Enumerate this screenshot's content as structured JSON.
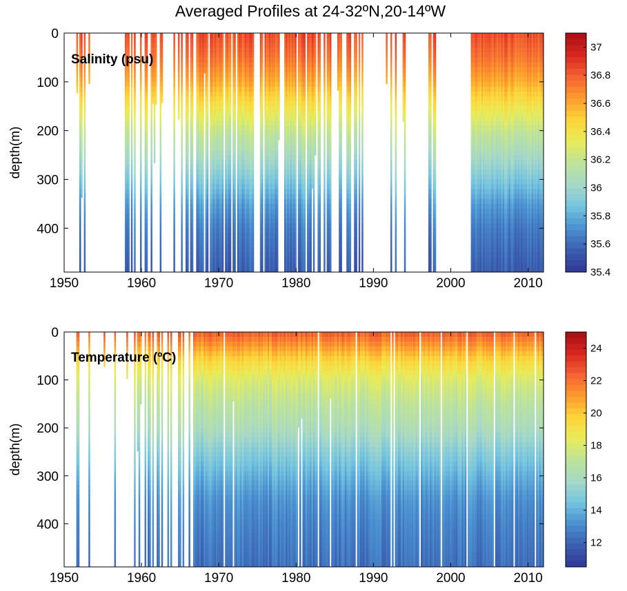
{
  "title": "Averaged Profiles at 24-32ºN,20-14ºW",
  "chart_data": [
    {
      "type": "heatmap",
      "label": "Salinity (psu)",
      "xlabel": "",
      "ylabel": "depth(m)",
      "xlim": [
        1950,
        2012
      ],
      "ylim": [
        0,
        490
      ],
      "y_reversed": true,
      "xticks": [
        1950,
        1960,
        1970,
        1980,
        1990,
        2000,
        2010
      ],
      "yticks": [
        0,
        100,
        200,
        300,
        400
      ],
      "colorbar": {
        "min": 35.4,
        "max": 37.1,
        "ticks": [
          35.4,
          35.6,
          35.8,
          36,
          36.2,
          36.4,
          36.6,
          36.8,
          37
        ]
      },
      "mean_profile": {
        "depth": [
          0,
          50,
          100,
          150,
          200,
          250,
          300,
          350,
          400,
          490
        ],
        "value": [
          36.85,
          36.75,
          36.6,
          36.4,
          36.2,
          36.05,
          35.9,
          35.75,
          35.65,
          35.55
        ]
      },
      "data_periods": [
        [
          1950,
          1954,
          0.12
        ],
        [
          1957.5,
          1963,
          0.4
        ],
        [
          1964,
          1967,
          0.6
        ],
        [
          1967,
          1983,
          0.85
        ],
        [
          1983,
          1989,
          0.35
        ],
        [
          1991,
          1994,
          0.4
        ],
        [
          1996.5,
          1999,
          0.3
        ],
        [
          2002.5,
          2012,
          1.0
        ]
      ],
      "colors": [
        "#313695",
        "#3b5fb0",
        "#4a8fd0",
        "#74c4e0",
        "#a6d8c8",
        "#bde39a",
        "#e8ec5a",
        "#fdd43a",
        "#fc9b2c",
        "#f46233",
        "#d7261e",
        "#a50f15"
      ]
    },
    {
      "type": "heatmap",
      "label": "Temperature (ºC)",
      "xlabel": "",
      "ylabel": "depth(m)",
      "xlim": [
        1950,
        2012
      ],
      "ylim": [
        0,
        490
      ],
      "y_reversed": true,
      "xticks": [
        1950,
        1960,
        1970,
        1980,
        1990,
        2000,
        2010
      ],
      "yticks": [
        0,
        100,
        200,
        300,
        400
      ],
      "colorbar": {
        "min": 10.5,
        "max": 25,
        "ticks": [
          12,
          14,
          16,
          18,
          20,
          22,
          24
        ]
      },
      "mean_profile": {
        "depth": [
          0,
          30,
          60,
          100,
          150,
          200,
          250,
          300,
          350,
          400,
          490
        ],
        "value": [
          22.5,
          21,
          19.5,
          18,
          17,
          16.2,
          15,
          14,
          13.2,
          12.8,
          12.3
        ]
      },
      "data_periods": [
        [
          1950,
          1954,
          0.2
        ],
        [
          1954,
          1958,
          0.2
        ],
        [
          1958,
          1964,
          0.45
        ],
        [
          1964,
          1967,
          0.7
        ],
        [
          1967,
          2012,
          0.95
        ]
      ],
      "colors": [
        "#313695",
        "#3b5fb0",
        "#4a8fd0",
        "#74c4e0",
        "#a6d8c8",
        "#bde39a",
        "#e8ec5a",
        "#fdd43a",
        "#fc9b2c",
        "#f46233",
        "#d7261e",
        "#a50f15"
      ]
    }
  ]
}
